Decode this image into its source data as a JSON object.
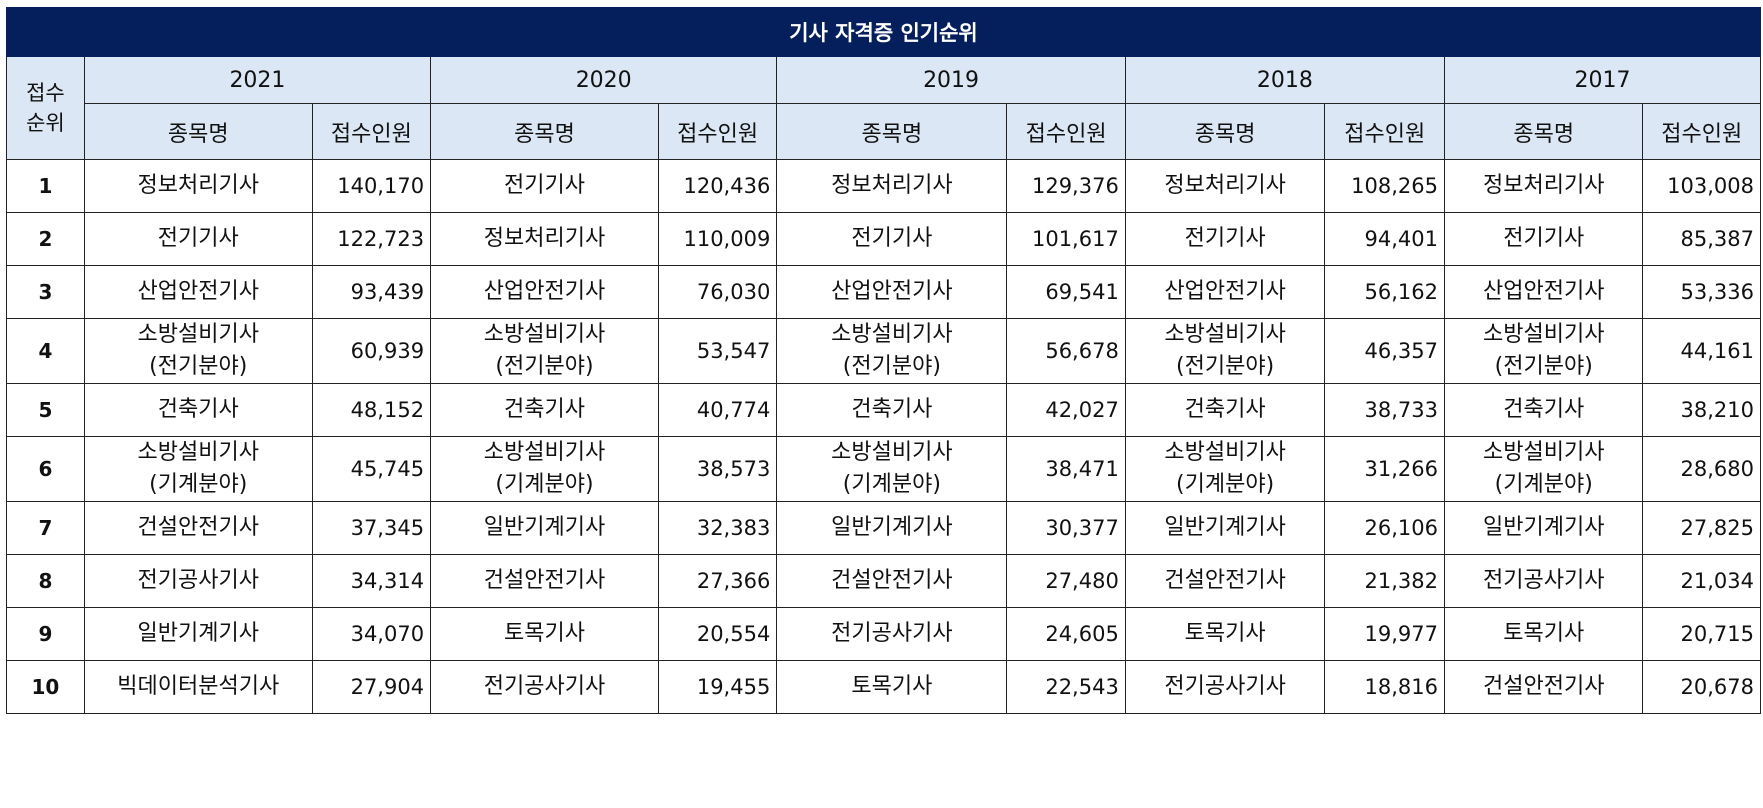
{
  "table": {
    "title": "기사 자격증 인기순위",
    "rank_header": [
      "접수",
      "순위"
    ],
    "years": [
      "2021",
      "2020",
      "2019",
      "2018",
      "2017"
    ],
    "col_name": "종목명",
    "col_count": "접수인원",
    "rows": [
      {
        "rank": "1",
        "cells": [
          {
            "name": [
              "정보처리기사"
            ],
            "count": "140,170"
          },
          {
            "name": [
              "전기기사"
            ],
            "count": "120,436"
          },
          {
            "name": [
              "정보처리기사"
            ],
            "count": "129,376"
          },
          {
            "name": [
              "정보처리기사"
            ],
            "count": "108,265"
          },
          {
            "name": [
              "정보처리기사"
            ],
            "count": "103,008"
          }
        ]
      },
      {
        "rank": "2",
        "cells": [
          {
            "name": [
              "전기기사"
            ],
            "count": "122,723"
          },
          {
            "name": [
              "정보처리기사"
            ],
            "count": "110,009"
          },
          {
            "name": [
              "전기기사"
            ],
            "count": "101,617"
          },
          {
            "name": [
              "전기기사"
            ],
            "count": "94,401"
          },
          {
            "name": [
              "전기기사"
            ],
            "count": "85,387"
          }
        ]
      },
      {
        "rank": "3",
        "cells": [
          {
            "name": [
              "산업안전기사"
            ],
            "count": "93,439"
          },
          {
            "name": [
              "산업안전기사"
            ],
            "count": "76,030"
          },
          {
            "name": [
              "산업안전기사"
            ],
            "count": "69,541"
          },
          {
            "name": [
              "산업안전기사"
            ],
            "count": "56,162"
          },
          {
            "name": [
              "산업안전기사"
            ],
            "count": "53,336"
          }
        ]
      },
      {
        "rank": "4",
        "cells": [
          {
            "name": [
              "소방설비기사",
              "(전기분야)"
            ],
            "count": "60,939"
          },
          {
            "name": [
              "소방설비기사",
              "(전기분야)"
            ],
            "count": "53,547"
          },
          {
            "name": [
              "소방설비기사",
              "(전기분야)"
            ],
            "count": "56,678"
          },
          {
            "name": [
              "소방설비기사",
              "(전기분야)"
            ],
            "count": "46,357"
          },
          {
            "name": [
              "소방설비기사",
              "(전기분야)"
            ],
            "count": "44,161"
          }
        ]
      },
      {
        "rank": "5",
        "cells": [
          {
            "name": [
              "건축기사"
            ],
            "count": "48,152"
          },
          {
            "name": [
              "건축기사"
            ],
            "count": "40,774"
          },
          {
            "name": [
              "건축기사"
            ],
            "count": "42,027"
          },
          {
            "name": [
              "건축기사"
            ],
            "count": "38,733"
          },
          {
            "name": [
              "건축기사"
            ],
            "count": "38,210"
          }
        ]
      },
      {
        "rank": "6",
        "cells": [
          {
            "name": [
              "소방설비기사",
              "(기계분야)"
            ],
            "count": "45,745"
          },
          {
            "name": [
              "소방설비기사",
              "(기계분야)"
            ],
            "count": "38,573"
          },
          {
            "name": [
              "소방설비기사",
              "(기계분야)"
            ],
            "count": "38,471"
          },
          {
            "name": [
              "소방설비기사",
              "(기계분야)"
            ],
            "count": "31,266"
          },
          {
            "name": [
              "소방설비기사",
              "(기계분야)"
            ],
            "count": "28,680"
          }
        ]
      },
      {
        "rank": "7",
        "cells": [
          {
            "name": [
              "건설안전기사"
            ],
            "count": "37,345"
          },
          {
            "name": [
              "일반기계기사"
            ],
            "count": "32,383"
          },
          {
            "name": [
              "일반기계기사"
            ],
            "count": "30,377"
          },
          {
            "name": [
              "일반기계기사"
            ],
            "count": "26,106"
          },
          {
            "name": [
              "일반기계기사"
            ],
            "count": "27,825"
          }
        ]
      },
      {
        "rank": "8",
        "cells": [
          {
            "name": [
              "전기공사기사"
            ],
            "count": "34,314"
          },
          {
            "name": [
              "건설안전기사"
            ],
            "count": "27,366"
          },
          {
            "name": [
              "건설안전기사"
            ],
            "count": "27,480"
          },
          {
            "name": [
              "건설안전기사"
            ],
            "count": "21,382"
          },
          {
            "name": [
              "전기공사기사"
            ],
            "count": "21,034"
          }
        ]
      },
      {
        "rank": "9",
        "cells": [
          {
            "name": [
              "일반기계기사"
            ],
            "count": "34,070"
          },
          {
            "name": [
              "토목기사"
            ],
            "count": "20,554"
          },
          {
            "name": [
              "전기공사기사"
            ],
            "count": "24,605"
          },
          {
            "name": [
              "토목기사"
            ],
            "count": "19,977"
          },
          {
            "name": [
              "토목기사"
            ],
            "count": "20,715"
          }
        ]
      },
      {
        "rank": "10",
        "cells": [
          {
            "name": [
              "빅데이터분석기사"
            ],
            "count": "27,904"
          },
          {
            "name": [
              "전기공사기사"
            ],
            "count": "19,455"
          },
          {
            "name": [
              "토목기사"
            ],
            "count": "22,543"
          },
          {
            "name": [
              "전기공사기사"
            ],
            "count": "18,816"
          },
          {
            "name": [
              "건설안전기사"
            ],
            "count": "20,678"
          }
        ]
      }
    ]
  },
  "colors": {
    "title_bg": "#051f5c",
    "header_bg": "#dbe7f4",
    "border": "#222222"
  }
}
